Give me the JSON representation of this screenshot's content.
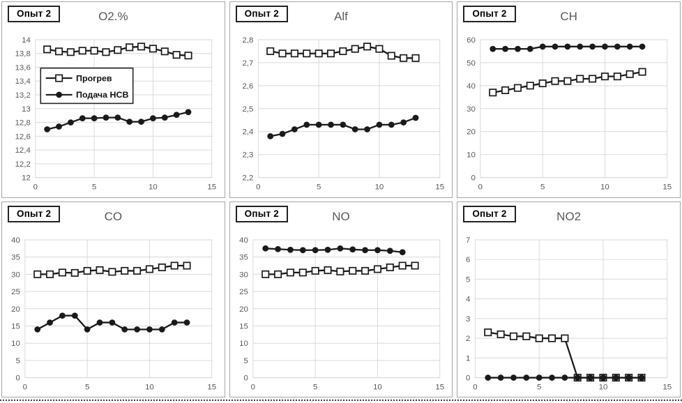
{
  "colors": {
    "series": "#1a1a1a",
    "grid": "#d9d9d9",
    "axis_text": "#595959",
    "title_text": "#595959",
    "panel_border": "#a6a6a6",
    "badge_border": "#222222",
    "legend_border": "#262626",
    "background": "#ffffff"
  },
  "legend": {
    "position": "upper-left-inside",
    "items": [
      {
        "label": "Прогрев",
        "marker": "square"
      },
      {
        "label": "Подача НСВ",
        "marker": "circle"
      }
    ]
  },
  "chart_data": [
    {
      "type": "line",
      "badge": "Опыт 2",
      "title": "O2.%",
      "xlim": [
        0,
        15
      ],
      "xticks": [
        0,
        5,
        10,
        15
      ],
      "ylim": [
        12,
        14
      ],
      "ystep": 0.2,
      "grid": true,
      "legend": true,
      "series": [
        {
          "name": "Прогрев",
          "marker": "square",
          "x_start": 1,
          "values": [
            13.86,
            13.83,
            13.82,
            13.84,
            13.84,
            13.82,
            13.85,
            13.89,
            13.9,
            13.87,
            13.83,
            13.78,
            13.77
          ]
        },
        {
          "name": "Подача НСВ",
          "marker": "circle",
          "x_start": 1,
          "values": [
            12.7,
            12.74,
            12.8,
            12.86,
            12.86,
            12.87,
            12.87,
            12.81,
            12.81,
            12.86,
            12.87,
            12.91,
            12.95
          ]
        }
      ]
    },
    {
      "type": "line",
      "badge": "Опыт 2",
      "title": "Alf",
      "xlim": [
        0,
        15
      ],
      "xticks": [
        0,
        5,
        10,
        15
      ],
      "ylim": [
        2.2,
        2.8
      ],
      "ystep": 0.1,
      "grid": true,
      "legend": false,
      "series": [
        {
          "name": "Прогрев",
          "marker": "square",
          "x_start": 1,
          "values": [
            2.75,
            2.74,
            2.74,
            2.74,
            2.74,
            2.74,
            2.75,
            2.76,
            2.77,
            2.76,
            2.73,
            2.72,
            2.72
          ]
        },
        {
          "name": "Подача НСВ",
          "marker": "circle",
          "x_start": 1,
          "values": [
            2.38,
            2.39,
            2.41,
            2.43,
            2.43,
            2.43,
            2.43,
            2.41,
            2.41,
            2.43,
            2.43,
            2.44,
            2.46
          ]
        }
      ]
    },
    {
      "type": "line",
      "badge": "Опыт 2",
      "title": "CH",
      "xlim": [
        0,
        15
      ],
      "xticks": [
        0,
        5,
        10,
        15
      ],
      "ylim": [
        0,
        60
      ],
      "ystep": 10,
      "grid": true,
      "legend": false,
      "series": [
        {
          "name": "Прогрев",
          "marker": "square",
          "x_start": 1,
          "values": [
            37,
            38,
            39,
            40,
            41,
            42,
            42,
            43,
            43,
            44,
            44,
            45,
            46
          ]
        },
        {
          "name": "Подача НСВ",
          "marker": "circle",
          "x_start": 1,
          "values": [
            56,
            56,
            56,
            56,
            57,
            57,
            57,
            57,
            57,
            57,
            57,
            57,
            57
          ]
        }
      ]
    },
    {
      "type": "line",
      "badge": "Опыт 2",
      "title": "CO",
      "xlim": [
        0,
        15
      ],
      "xticks": [
        0,
        5,
        10,
        15
      ],
      "ylim": [
        0,
        40
      ],
      "ystep": 5,
      "grid": true,
      "legend": false,
      "series": [
        {
          "name": "Прогрев",
          "marker": "square",
          "x_start": 1,
          "values": [
            30,
            30,
            30.5,
            30.4,
            31,
            31.2,
            30.7,
            31,
            31,
            31.5,
            32,
            32.5,
            32.5
          ]
        },
        {
          "name": "Подача НСВ",
          "marker": "circle",
          "x_start": 1,
          "values": [
            14,
            16,
            18,
            18,
            14,
            16,
            16,
            14,
            14,
            14,
            14,
            16,
            16
          ]
        }
      ]
    },
    {
      "type": "line",
      "badge": "Опыт 2",
      "title": "NO",
      "xlim": [
        0,
        15
      ],
      "xticks": [
        0,
        5,
        10,
        15
      ],
      "ylim": [
        0,
        40
      ],
      "ystep": 5,
      "grid": true,
      "legend": false,
      "series": [
        {
          "name": "Прогрев",
          "marker": "square",
          "x_start": 1,
          "values": [
            30,
            30,
            30.5,
            30.5,
            31,
            31.2,
            30.8,
            31,
            31,
            31.5,
            32,
            32.5,
            32.5
          ]
        },
        {
          "name": "Подача НСВ",
          "marker": "circle",
          "x_start": 1,
          "values": [
            37.5,
            37.3,
            37.1,
            37.0,
            37.0,
            37.1,
            37.5,
            37.2,
            37.0,
            37.0,
            36.8,
            36.4
          ]
        }
      ]
    },
    {
      "type": "line",
      "badge": "Опыт 2",
      "title": "NO2",
      "xlim": [
        0,
        15
      ],
      "xticks": [
        0,
        5,
        10,
        15
      ],
      "ylim": [
        0,
        7
      ],
      "ystep": 1,
      "grid": true,
      "legend": false,
      "series": [
        {
          "name": "Прогрев",
          "marker": "square",
          "x_start": 1,
          "values": [
            2.3,
            2.2,
            2.1,
            2.1,
            2.0,
            2.0,
            2.0,
            0,
            0,
            0,
            0,
            0,
            0
          ]
        },
        {
          "name": "Подача НСВ",
          "marker": "circle",
          "x_start": 1,
          "values": [
            0,
            0,
            0,
            0,
            0,
            0,
            0,
            0,
            0,
            0,
            0,
            0,
            0
          ]
        }
      ]
    }
  ]
}
